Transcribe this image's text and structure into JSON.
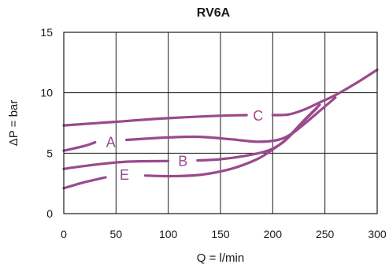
{
  "colors": {
    "curve": "#9a4a8c",
    "grid": "#1a1a1a",
    "text": "#1a1a1a",
    "background": "#ffffff"
  },
  "chart_data": {
    "type": "line",
    "title": "RV6A",
    "xlabel": "Q = l/min",
    "ylabel": "ΔP = bar",
    "xlim": [
      0,
      300
    ],
    "ylim": [
      0,
      15
    ],
    "x_ticks": [
      0,
      50,
      100,
      150,
      200,
      250,
      300
    ],
    "y_ticks": [
      0,
      5,
      10,
      15
    ],
    "grid": true,
    "series": [
      {
        "name": "C",
        "label_at": [
          186,
          8.1
        ],
        "segments": [
          [
            [
              0,
              7.3
            ],
            [
              50,
              7.6
            ],
            [
              100,
              7.9
            ],
            [
              150,
              8.1
            ],
            [
              175,
              8.15
            ]
          ],
          [
            [
              200,
              8.15
            ],
            [
              215,
              8.2
            ],
            [
              230,
              8.6
            ],
            [
              245,
              9.2
            ],
            [
              260,
              9.8
            ],
            [
              280,
              10.8
            ],
            [
              300,
              11.9
            ]
          ]
        ]
      },
      {
        "name": "A",
        "label_at": [
          45,
          5.9
        ],
        "segments": [
          [
            [
              0,
              5.2
            ],
            [
              20,
              5.6
            ],
            [
              30,
              5.9
            ]
          ],
          [
            [
              60,
              6.1
            ],
            [
              100,
              6.3
            ],
            [
              130,
              6.35
            ],
            [
              160,
              6.15
            ],
            [
              185,
              5.95
            ],
            [
              205,
              6.1
            ],
            [
              218,
              6.6
            ],
            [
              230,
              7.4
            ],
            [
              245,
              8.5
            ],
            [
              260,
              9.6
            ]
          ]
        ]
      },
      {
        "name": "B",
        "label_at": [
          114,
          4.35
        ],
        "segments": [
          [
            [
              0,
              3.7
            ],
            [
              25,
              4.0
            ],
            [
              60,
              4.3
            ],
            [
              100,
              4.35
            ]
          ],
          [
            [
              128,
              4.4
            ],
            [
              150,
              4.5
            ],
            [
              175,
              4.8
            ],
            [
              195,
              5.2
            ],
            [
              210,
              5.9
            ],
            [
              220,
              6.8
            ],
            [
              232,
              7.9
            ],
            [
              245,
              9.0
            ]
          ]
        ]
      },
      {
        "name": "E",
        "label_at": [
          58,
          3.2
        ],
        "segments": [
          [
            [
              0,
              2.1
            ],
            [
              20,
              2.6
            ],
            [
              40,
              3.0
            ]
          ],
          [
            [
              78,
              3.15
            ],
            [
              100,
              3.1
            ],
            [
              130,
              3.2
            ],
            [
              160,
              3.7
            ],
            [
              185,
              4.5
            ],
            [
              200,
              5.3
            ],
            [
              215,
              6.3
            ],
            [
              228,
              7.5
            ],
            [
              242,
              8.7
            ]
          ]
        ]
      }
    ]
  }
}
